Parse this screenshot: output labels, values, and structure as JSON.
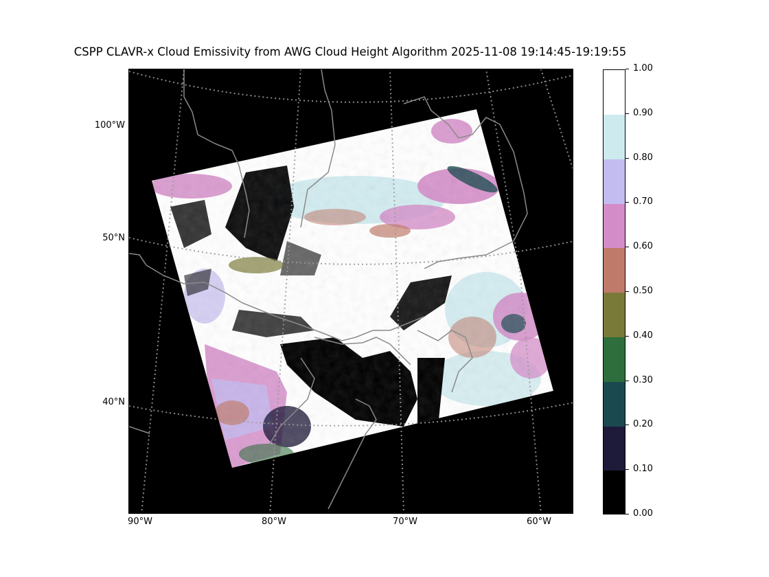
{
  "title": "CSPP CLAVR-x Cloud Emissivity from AWG Cloud Height Algorithm 2025-11-08 19:14:45-19:19:55",
  "map": {
    "background_color": "#000000",
    "coastline_color": "#8a8a8a",
    "graticule_color": "#9a9a9a",
    "lat_labels": [
      {
        "label": "100°W"
      },
      {
        "label": "50°N"
      },
      {
        "label": "40°N"
      }
    ],
    "lon_labels": [
      {
        "label": "90°W"
      },
      {
        "label": "80°W"
      },
      {
        "label": "70°W"
      },
      {
        "label": "60°W"
      }
    ]
  },
  "colorbar": {
    "ticks": [
      "0.00",
      "0.10",
      "0.20",
      "0.30",
      "0.40",
      "0.50",
      "0.60",
      "0.70",
      "0.80",
      "0.90",
      "1.00"
    ],
    "colors": [
      "#000000",
      "#1e1a3a",
      "#1a4a50",
      "#2d6e3c",
      "#7a7a38",
      "#c07a6a",
      "#d48cc8",
      "#c3bcf0",
      "#cdeaee",
      "#ffffff"
    ]
  }
}
